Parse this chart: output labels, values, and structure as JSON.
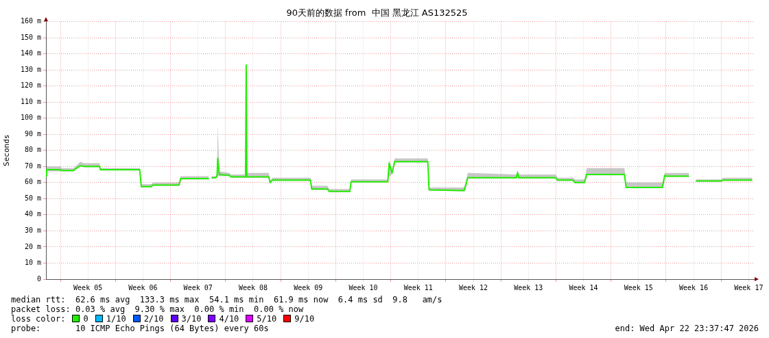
{
  "chart_data": {
    "type": "line",
    "title": "90天前的数据 from  中国 黑龙江 AS132525",
    "ylabel": "Seconds",
    "xlim": [
      "2026-01-23T04:00",
      "2026-04-23T04:00"
    ],
    "ylim": [
      0,
      160
    ],
    "xticks": [
      {
        "value": "2026-01-25",
        "label": null
      },
      {
        "value": "2026-01-28T12:00",
        "label": "Week 05"
      },
      {
        "value": "2026-02-01",
        "label": null
      },
      {
        "value": "2026-02-04T12:00",
        "label": "Week 06"
      },
      {
        "value": "2026-02-08",
        "label": null
      },
      {
        "value": "2026-02-11T12:00",
        "label": "Week 07"
      },
      {
        "value": "2026-02-15",
        "label": null
      },
      {
        "value": "2026-02-18T12:00",
        "label": "Week 08"
      },
      {
        "value": "2026-02-22",
        "label": null
      },
      {
        "value": "2026-02-25T12:00",
        "label": "Week 09"
      },
      {
        "value": "2026-03-01",
        "label": null
      },
      {
        "value": "2026-03-04T12:00",
        "label": "Week 10"
      },
      {
        "value": "2026-03-08",
        "label": null
      },
      {
        "value": "2026-03-11T12:00",
        "label": "Week 11"
      },
      {
        "value": "2026-03-15",
        "label": null
      },
      {
        "value": "2026-03-18T12:00",
        "label": "Week 12"
      },
      {
        "value": "2026-03-22",
        "label": null
      },
      {
        "value": "2026-03-25T12:00",
        "label": "Week 13"
      },
      {
        "value": "2026-03-29",
        "label": null
      },
      {
        "value": "2026-04-01T12:00",
        "label": "Week 14"
      },
      {
        "value": "2026-04-05",
        "label": null
      },
      {
        "value": "2026-04-08T12:00",
        "label": "Week 15"
      },
      {
        "value": "2026-04-12",
        "label": null
      },
      {
        "value": "2026-04-15T12:00",
        "label": "Week 16"
      },
      {
        "value": "2026-04-19",
        "label": null
      },
      {
        "value": "2026-04-22T12:00",
        "label": "Week 17"
      }
    ],
    "yticks": [
      0,
      {
        "value": 10,
        "label": "10 m"
      },
      {
        "value": 20,
        "label": "20 m"
      },
      {
        "value": 30,
        "label": "30 m"
      },
      {
        "value": 40,
        "label": "40 m"
      },
      {
        "value": 50,
        "label": "50 m"
      },
      {
        "value": 60,
        "label": "60 m"
      },
      {
        "value": 70,
        "label": "70 m"
      },
      {
        "value": 80,
        "label": "80 m"
      },
      {
        "value": 90,
        "label": "90 m"
      },
      {
        "value": 100,
        "label": "100 m"
      },
      {
        "value": 110,
        "label": "110 m"
      },
      {
        "value": 120,
        "label": "120 m"
      },
      {
        "value": 130,
        "label": "130 m"
      },
      {
        "value": 140,
        "label": "140 m"
      },
      {
        "value": 150,
        "label": "150 m"
      },
      {
        "value": 160,
        "label": "160 m"
      }
    ],
    "grid": true,
    "legend": false,
    "marker": "none",
    "line_style": "solid",
    "series": [
      {
        "color": "#22ee00",
        "x": [
          "2026-01-23T04:00",
          "2026-01-23T06:00",
          "2026-01-25T00:00",
          "2026-01-25T04:00",
          "2026-01-26T16:00",
          "2026-01-26T22:00",
          "2026-01-27T13:00",
          "2026-01-28T00:00",
          "2026-01-30T00:00",
          "2026-01-30T02:00",
          "2026-02-04T02:00",
          "2026-02-04T07:00",
          "2026-02-05T14:00",
          "2026-02-05T18:00",
          "2026-02-09T02:00",
          "2026-02-09T07:00",
          "2026-02-12T21:00",
          "2026-02-13T01:00",
          "2026-02-13T05:00",
          "2026-02-13T18:00",
          "2026-02-13T22:00",
          "2026-02-14T00:00",
          "2026-02-14T05:00",
          "2026-02-15T12:00",
          "2026-02-15T16:00",
          "2026-02-17T13:00",
          "2026-02-17T15:00",
          "2026-02-17T17:00",
          "2026-02-20T12:00",
          "2026-02-20T16:00",
          "2026-02-20T23:00",
          "2026-02-21T10:00",
          "2026-02-21T20:00",
          "2026-02-25T19:00",
          "2026-02-25T23:00",
          "2026-02-27T23:00",
          "2026-02-28T04:00",
          "2026-03-02T19:00",
          "2026-03-02T23:00",
          "2026-03-07T15:00",
          "2026-03-07T19:00",
          "2026-03-08T04:00",
          "2026-03-08T12:00",
          "2026-03-12T17:00",
          "2026-03-12T21:00",
          "2026-03-17T07:00",
          "2026-03-17T11:00",
          "2026-03-17T19:00",
          "2026-03-17T23:00",
          "2026-03-23T23:00",
          "2026-03-24T03:00",
          "2026-03-24T07:00",
          "2026-03-28T23:00",
          "2026-03-29T05:00",
          "2026-03-31T04:00",
          "2026-03-31T10:00",
          "2026-04-01T15:00",
          "2026-04-01T22:00",
          "2026-04-06T17:00",
          "2026-04-06T22:00",
          "2026-04-11T13:00",
          "2026-04-11T20:00",
          "2026-04-12T00:00",
          "2026-04-14T22:00",
          "2026-04-15T09:00",
          "2026-04-15T19:00",
          "2026-04-19T01:00",
          "2026-04-19T05:00",
          "2026-04-22T23:00"
        ],
        "values": [
          64,
          68,
          68,
          67.5,
          67.5,
          68.5,
          70.5,
          70,
          70,
          68,
          68,
          57.5,
          57.5,
          58.5,
          58.5,
          62.5,
          62.5,
          null,
          63,
          63,
          64,
          75,
          65,
          64.5,
          63.5,
          63.5,
          133,
          63.5,
          63.5,
          60,
          61.5,
          61.5,
          61.5,
          61.5,
          56,
          56,
          54.5,
          54.5,
          60.5,
          60.5,
          72,
          66,
          73,
          73,
          55.5,
          55,
          57,
          63,
          63,
          63,
          66,
          63,
          63,
          61.5,
          61.5,
          60,
          60,
          65,
          65,
          57,
          57,
          64.5,
          64,
          64,
          null,
          61,
          61,
          61.5,
          61.5
        ],
        "lower": [
          63,
          67,
          67,
          67,
          67,
          68,
          70,
          69.5,
          69.5,
          67.5,
          67.5,
          57,
          57,
          58,
          58,
          62,
          62,
          null,
          62.5,
          62.5,
          63.5,
          64,
          64,
          64,
          63,
          63,
          63,
          63,
          63,
          59.5,
          61,
          61,
          61,
          61,
          55.5,
          55.5,
          54,
          54,
          60,
          60,
          64,
          65,
          72.5,
          72.5,
          55,
          54.5,
          54.5,
          62.5,
          62.5,
          62.5,
          62.5,
          62.5,
          62.5,
          61,
          61,
          59.5,
          59.5,
          64.5,
          64.5,
          56.5,
          56.5,
          63.5,
          63.5,
          63.5,
          null,
          60.5,
          60.5,
          61,
          61
        ],
        "upper": [
          66,
          70,
          70,
          69,
          69,
          70,
          73,
          72,
          72,
          69,
          69,
          59,
          59,
          60,
          60,
          64,
          64,
          null,
          64,
          64,
          66,
          95,
          67,
          66,
          65,
          65,
          134,
          66,
          66,
          61,
          63,
          63,
          63,
          63,
          58,
          58,
          56,
          56,
          62,
          62,
          74,
          68,
          75,
          75,
          57,
          57,
          59,
          66,
          66,
          65,
          68,
          65,
          65,
          63,
          63,
          62,
          62,
          69,
          69,
          60,
          60,
          66,
          66,
          66,
          null,
          62,
          62,
          63,
          63
        ]
      }
    ],
    "annotations": [
      "median rtt:  62.6 ms avg  133.3 ms max  54.1 ms min  61.9 ms now  6.4 ms sd  9.8   am/s",
      "packet loss: 0.03 % avg  9.30 % max  0.00 % min  0.00 % now",
      "loss color:",
      "0",
      "1/10",
      "2/10",
      "3/10",
      "4/10",
      "5/10",
      "9/10",
      "probe:       10 ICMP Echo Pings (64 Bytes) every 60s",
      "end: Wed Apr 22 23:37:47 2026"
    ]
  }
}
